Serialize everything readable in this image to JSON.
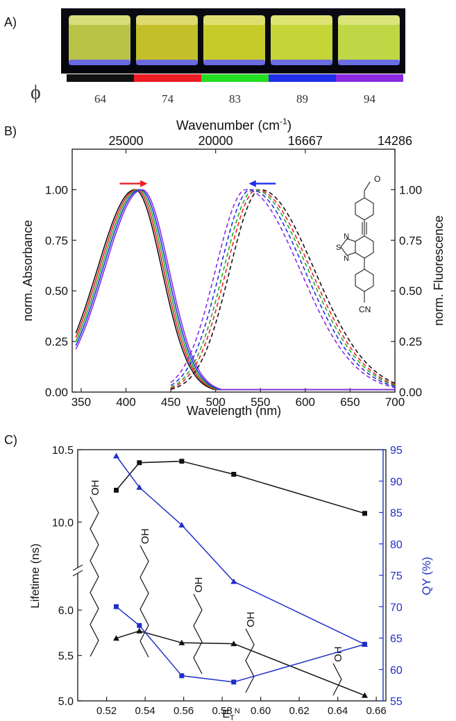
{
  "panel_labels": [
    "A)",
    "B)",
    "C)"
  ],
  "panel_a": {
    "phi_symbol": "ϕ",
    "vials": [
      {
        "label": "64",
        "bar_color": "#111111",
        "liquid": "#c9d44a"
      },
      {
        "label": "74",
        "bar_color": "#ee1c25",
        "liquid": "#d2cf2a"
      },
      {
        "label": "83",
        "bar_color": "#22dd22",
        "liquid": "#d8dc2c"
      },
      {
        "label": "89",
        "bar_color": "#1f2fe8",
        "liquid": "#d6e63a"
      },
      {
        "label": "94",
        "bar_color": "#8a2be2",
        "liquid": "#cfe84a"
      }
    ]
  },
  "chart_data": [
    {
      "type": "line",
      "panel": "B",
      "xlabel": "Wavelength (nm)",
      "x2label": "Wavenumber (cm-1)",
      "x2label_base": "Wavenumber (cm",
      "x2label_sup": "-1",
      "x2label_end": ")",
      "ylabel": "norm. Absorbance",
      "y2label": "norm. Fluorescence",
      "xlim": [
        340,
        700
      ],
      "ylim": [
        0,
        1.2
      ],
      "xticks": [
        "350",
        "400",
        "450",
        "500",
        "550",
        "600",
        "650",
        "700"
      ],
      "x2ticks": [
        {
          "label": "25000",
          "nm": 400
        },
        {
          "label": "20000",
          "nm": 500
        },
        {
          "label": "16667",
          "nm": 600
        },
        {
          "label": "14286",
          "nm": 700
        }
      ],
      "yticks": [
        "0.00",
        "0.25",
        "0.50",
        "0.75",
        "1.00"
      ],
      "absorption_peaks_nm": [
        410,
        412,
        414,
        416,
        418
      ],
      "emission_peaks_nm": [
        550,
        546,
        543,
        539,
        534
      ],
      "series_colors": [
        "#111111",
        "#ee1c25",
        "#22aa22",
        "#1f2fe8",
        "#8a2be2"
      ],
      "arrows": {
        "absorption": {
          "color": "#ee1c25",
          "direction": "right"
        },
        "emission": {
          "color": "#1f2fe8",
          "direction": "left"
        }
      },
      "molecule_labels": {
        "methoxy": "O",
        "thiadiazole_S": "S",
        "thiadiazole_N1": "N",
        "thiadiazole_N2": "N",
        "nitrile": "CN"
      }
    },
    {
      "type": "line",
      "panel": "C",
      "xlabel": "E",
      "xlabel_sub": "T",
      "xlabel_sup": "N",
      "ylabel": "Lifetime (ns)",
      "y2label": "QY (%)",
      "xlim": [
        0.505,
        0.665
      ],
      "xticks": [
        "0.52",
        "0.54",
        "0.56",
        "0.58",
        "0.60",
        "0.62",
        "0.64",
        "0.66"
      ],
      "yticks_lower": [
        "5.0",
        "5.5",
        "6.0"
      ],
      "yticks_upper": [
        "10.0",
        "10.5"
      ],
      "y2ticks": [
        "55",
        "60",
        "65",
        "70",
        "75",
        "80",
        "85",
        "90",
        "95"
      ],
      "series": [
        {
          "name": "",
          "marker": "square",
          "color": "#111111",
          "axis": "lifetime",
          "x": [
            0.525,
            0.537,
            0.559,
            0.586,
            0.654
          ],
          "y": [
            10.22,
            10.41,
            10.42,
            10.33,
            10.06
          ]
        },
        {
          "name": "",
          "marker": "triangle",
          "color": "#111111",
          "axis": "lifetime",
          "x": [
            0.525,
            0.537,
            0.559,
            0.586,
            0.654
          ],
          "y": [
            5.69,
            5.77,
            5.64,
            5.63,
            5.06
          ]
        },
        {
          "name": "",
          "marker": "triangle",
          "color": "#1f2fc8",
          "axis": "qy",
          "x": [
            0.525,
            0.537,
            0.559,
            0.586,
            0.654
          ],
          "y": [
            94,
            89,
            83,
            74,
            64
          ]
        },
        {
          "name": "",
          "marker": "square",
          "color": "#1f2fc8",
          "axis": "qy",
          "x": [
            0.525,
            0.537,
            0.559,
            0.586,
            0.654
          ],
          "y": [
            70,
            67,
            59,
            58,
            64
          ]
        }
      ],
      "alcohol_labels": [
        "OH",
        "OH",
        "OH",
        "OH",
        "OH"
      ]
    }
  ]
}
